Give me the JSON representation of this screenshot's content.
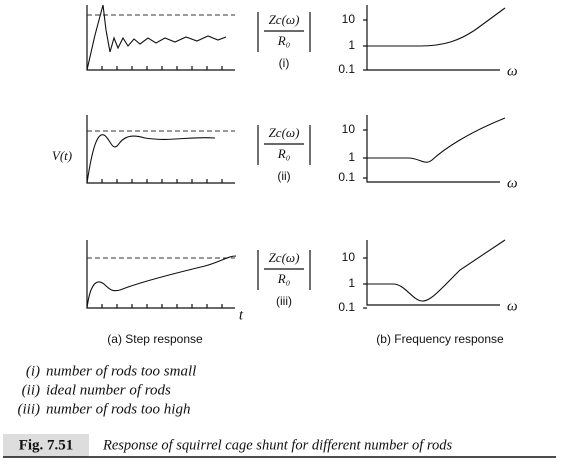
{
  "step_response": {
    "y_label": "V(t)",
    "x_label": "t",
    "caption": "(a) Step response"
  },
  "frequency_response": {
    "x_label": "ω",
    "caption": "(b) Frequency response"
  },
  "rows": [
    {
      "numerator": "Zc(ω)",
      "denominator": "R₀",
      "case": "(i)",
      "freq_ticks": [
        "10",
        "1",
        "0.1"
      ]
    },
    {
      "numerator": "Zc(ω)",
      "denominator": "R₀",
      "case": "(ii)",
      "freq_ticks": [
        "10",
        "1",
        "0.1"
      ]
    },
    {
      "numerator": "Zc(ω)",
      "denominator": "R₀",
      "case": "(iii)",
      "freq_ticks": [
        "10",
        "1",
        "0.1"
      ]
    }
  ],
  "legend": [
    {
      "num": "(i)",
      "text": "number of rods too small"
    },
    {
      "num": "(ii)",
      "text": "ideal number of rods"
    },
    {
      "num": "(iii)",
      "text": "number of rods too high"
    }
  ],
  "figure": {
    "label": "Fig. 7.51",
    "caption": "Response of squirrel cage shunt for different number of rods"
  }
}
